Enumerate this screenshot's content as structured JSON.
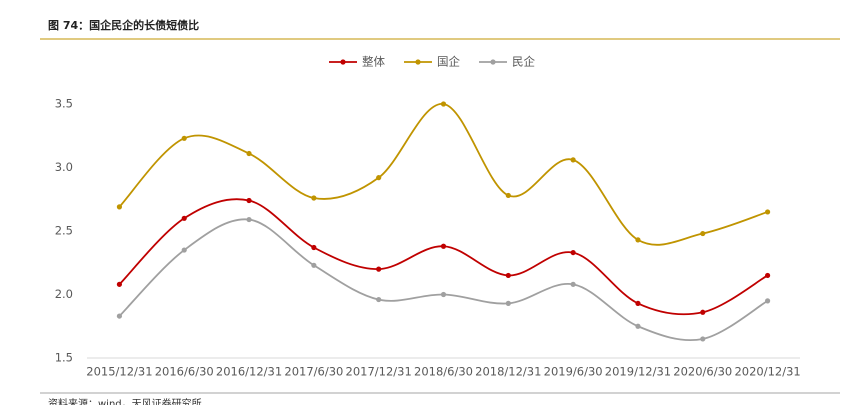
{
  "chart_data": {
    "type": "line",
    "title": "图 74：国企民企的长债短债比",
    "note": "资料来源：wind，天风证券研究所",
    "categories": [
      "2015/12/31",
      "2016/6/30",
      "2016/12/31",
      "2017/6/30",
      "2017/12/31",
      "2018/6/30",
      "2018/12/31",
      "2019/6/30",
      "2019/12/31",
      "2020/6/30",
      "2020/12/31"
    ],
    "series": [
      {
        "name": "整体",
        "color": "#c00000",
        "values": [
          2.08,
          2.6,
          2.74,
          2.37,
          2.2,
          2.38,
          2.15,
          2.33,
          1.93,
          1.86,
          2.15
        ]
      },
      {
        "name": "国企",
        "color": "#c09400",
        "values": [
          2.69,
          3.23,
          3.11,
          2.76,
          2.92,
          3.5,
          2.78,
          3.06,
          2.43,
          2.48,
          2.65
        ]
      },
      {
        "name": "民企",
        "color": "#a0a0a0",
        "values": [
          1.83,
          2.35,
          2.59,
          2.23,
          1.96,
          2.0,
          1.93,
          2.08,
          1.75,
          1.65,
          1.95
        ]
      }
    ],
    "ylim": [
      1.5,
      3.5
    ],
    "yticks": [
      1.5,
      {
        "value": 2,
        "label": "2.0"
      },
      2.5,
      {
        "value": 3,
        "label": "3.0"
      },
      3.5
    ],
    "smooth": true,
    "legend": "top",
    "grid": false
  }
}
